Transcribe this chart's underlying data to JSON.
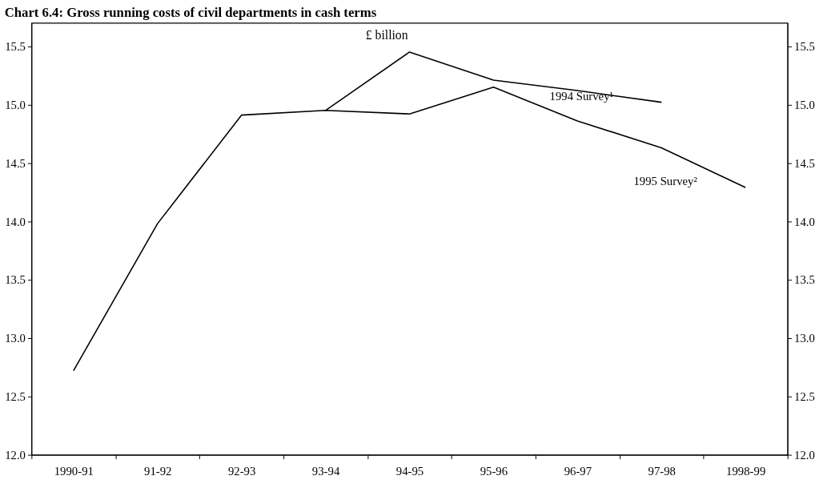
{
  "chart_data": {
    "type": "line",
    "title": "Chart 6.4: Gross running costs of civil departments in cash terms",
    "annotations": [
      "£ billion"
    ],
    "categories": [
      "1990-91",
      "91-92",
      "92-93",
      "93-94",
      "94-95",
      "95-96",
      "96-97",
      "97-98",
      "1998-99"
    ],
    "series": [
      {
        "name": "1994 Survey¹",
        "color": "#000000",
        "values": [
          null,
          null,
          null,
          14.95,
          15.45,
          15.21,
          15.12,
          15.02,
          null
        ]
      },
      {
        "name": "1995 Survey²",
        "color": "#000000",
        "values": [
          12.72,
          13.98,
          14.91,
          14.95,
          14.92,
          15.15,
          14.86,
          14.63,
          14.29
        ]
      }
    ],
    "ylim": [
      12.0,
      15.7
    ],
    "yticks": [
      {
        "value": 12,
        "label": "12.0"
      },
      {
        "value": 12.5,
        "label": "12.5"
      },
      {
        "value": 13,
        "label": "13.0"
      },
      {
        "value": 13.5,
        "label": "13.5"
      },
      {
        "value": 14,
        "label": "14.0"
      },
      {
        "value": 14.5,
        "label": "14.5"
      },
      {
        "value": 15,
        "label": "15.0"
      },
      {
        "value": 15.5,
        "label": "15.5"
      }
    ],
    "y2lim": [
      12.0,
      15.7
    ],
    "y2ticks": [
      {
        "value": 12,
        "label": "12.0"
      },
      {
        "value": 12.5,
        "label": "12.5"
      },
      {
        "value": 13,
        "label": "13.0"
      },
      {
        "value": 13.5,
        "label": "13.5"
      },
      {
        "value": 14,
        "label": "14.0"
      },
      {
        "value": 14.5,
        "label": "14.5"
      },
      {
        "value": 15,
        "label": "15.0"
      },
      {
        "value": 15.5,
        "label": "15.5"
      }
    ],
    "grid": false,
    "legend": false,
    "marker": "none",
    "line_style": "solid"
  }
}
